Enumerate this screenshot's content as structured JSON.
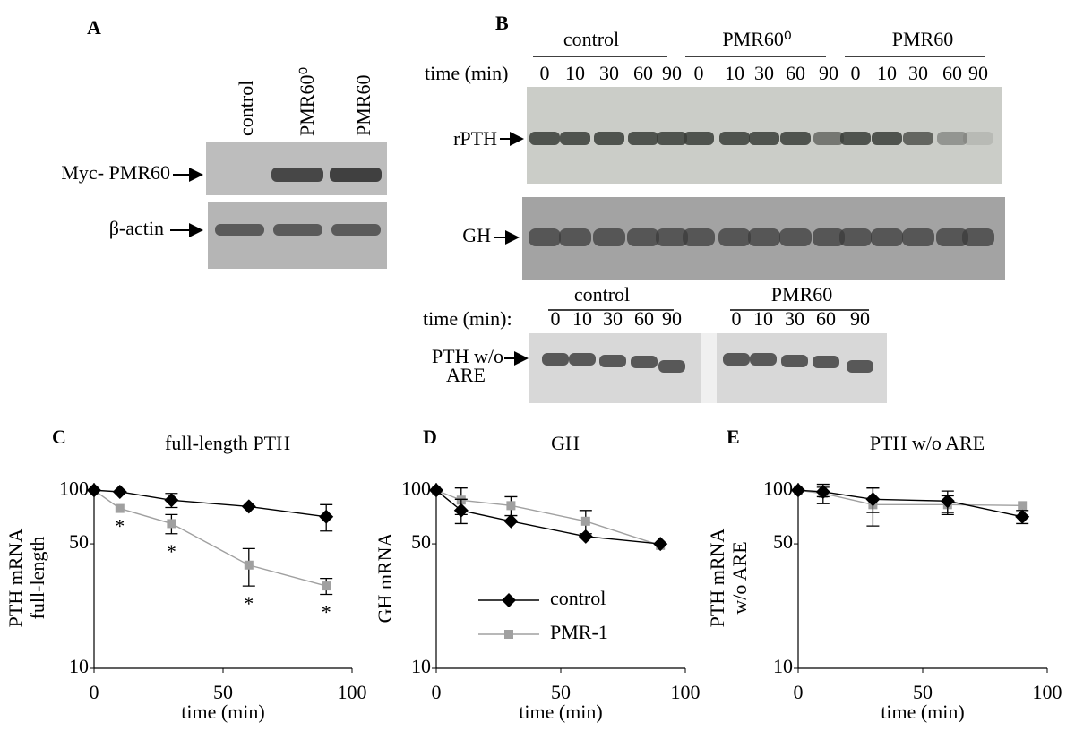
{
  "panel_a": {
    "letter": "A",
    "lanes": [
      "control",
      "PMR60⁰",
      "PMR60"
    ],
    "rows": [
      "Myc- PMR60",
      "β-actin"
    ]
  },
  "panel_b": {
    "letter": "B",
    "groups": [
      "control",
      "PMR60⁰",
      "PMR60"
    ],
    "time_label": "time (min)",
    "times": [
      "0",
      "10",
      "30",
      "60",
      "90"
    ],
    "rows": [
      "rPTH",
      "GH"
    ],
    "lower_groups": [
      "control",
      "PMR60"
    ],
    "lower_time_label": "time (min):",
    "lower_row": [
      "PTH w/o",
      "ARE"
    ]
  },
  "chart_data": [
    {
      "type": "line",
      "panel": "C",
      "title": "full-length PTH",
      "xlabel": "time (min)",
      "ylabel": [
        "PTH mRNA",
        "full-length"
      ],
      "x": [
        0,
        10,
        30,
        60,
        90
      ],
      "xlim": [
        0,
        100
      ],
      "xticks": [
        0,
        50,
        100
      ],
      "ylim": [
        10,
        110
      ],
      "yticks": [
        10,
        50,
        100
      ],
      "log_y": true,
      "series": [
        {
          "name": "control",
          "color": "#000000",
          "marker": "diamond",
          "values": [
            100,
            98,
            88,
            81,
            71
          ],
          "errors": [
            0,
            0,
            8,
            0,
            12
          ]
        },
        {
          "name": "PMR-1",
          "color": "#a0a0a0",
          "marker": "square",
          "values": [
            100,
            79,
            65,
            38,
            29
          ],
          "errors": [
            0,
            0,
            8,
            9,
            3
          ]
        }
      ],
      "annotations": [
        {
          "text": "*",
          "x": 10
        },
        {
          "text": "*",
          "x": 30
        },
        {
          "text": "*",
          "x": 60
        },
        {
          "text": "*",
          "x": 90
        }
      ]
    },
    {
      "type": "line",
      "panel": "D",
      "title": "GH",
      "xlabel": "time (min)",
      "ylabel": [
        "GH mRNA"
      ],
      "x": [
        0,
        10,
        30,
        60,
        90
      ],
      "xlim": [
        0,
        100
      ],
      "xticks": [
        0,
        50,
        100
      ],
      "ylim": [
        10,
        110
      ],
      "yticks": [
        10,
        50,
        100
      ],
      "log_y": true,
      "legend": "bottom-center",
      "series": [
        {
          "name": "control",
          "color": "#000000",
          "marker": "diamond",
          "values": [
            100,
            77,
            67,
            55,
            50
          ],
          "errors": [
            0,
            12,
            0,
            0,
            0
          ]
        },
        {
          "name": "PMR-1",
          "color": "#a0a0a0",
          "marker": "square",
          "values": [
            100,
            88,
            82,
            67,
            49
          ],
          "errors": [
            0,
            15,
            10,
            10,
            0
          ]
        }
      ]
    },
    {
      "type": "line",
      "panel": "E",
      "title": "PTH w/o ARE",
      "xlabel": "time (min)",
      "ylabel": [
        "PTH mRNA",
        "w/o ARE"
      ],
      "x": [
        0,
        10,
        30,
        60,
        90
      ],
      "xlim": [
        0,
        100
      ],
      "xticks": [
        0,
        50,
        100
      ],
      "ylim": [
        10,
        110
      ],
      "yticks": [
        10,
        50,
        100
      ],
      "log_y": true,
      "series": [
        {
          "name": "control",
          "color": "#000000",
          "marker": "diamond",
          "values": [
            100,
            98,
            89,
            87,
            71
          ],
          "errors": [
            0,
            6,
            14,
            12,
            6
          ]
        },
        {
          "name": "PMR-1",
          "color": "#a0a0a0",
          "marker": "square",
          "values": [
            100,
            96,
            83,
            83,
            82
          ],
          "errors": [
            0,
            12,
            20,
            10,
            0
          ]
        }
      ]
    }
  ]
}
